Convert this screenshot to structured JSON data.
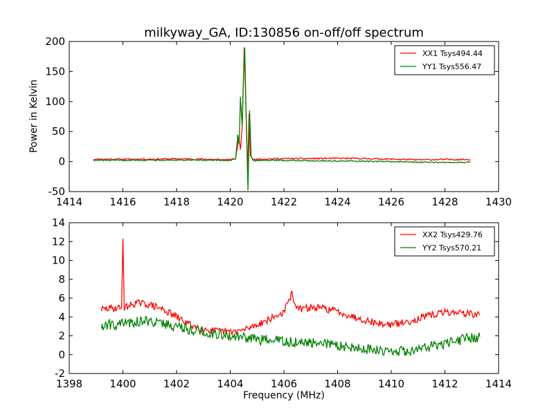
{
  "title": "milkyway_GA, ID:130856 on-off/off spectrum",
  "colors": {
    "xx": "#ff0000",
    "yy": "#008000"
  },
  "chart_data": [
    {
      "type": "line",
      "ylabel": "Power in Kelvin",
      "xlabel": "",
      "xlim": [
        1414,
        1430
      ],
      "ylim": [
        -50,
        200
      ],
      "xticks": [
        "1414",
        "1416",
        "1418",
        "1420",
        "1422",
        "1424",
        "1426",
        "1428",
        "1430"
      ],
      "yticks": [
        "-50",
        "0",
        "50",
        "100",
        "150",
        "200"
      ],
      "legend_position": "top-right",
      "series": [
        {
          "name": "XX1 Tsys494.44",
          "color": "#ff0000",
          "points": [
            [
              1414.9,
              4
            ],
            [
              1416,
              4
            ],
            [
              1417,
              4
            ],
            [
              1418,
              4.5
            ],
            [
              1419,
              4
            ],
            [
              1420,
              3
            ],
            [
              1420.2,
              5
            ],
            [
              1420.32,
              40
            ],
            [
              1420.38,
              20
            ],
            [
              1420.45,
              60
            ],
            [
              1420.52,
              190
            ],
            [
              1420.58,
              100
            ],
            [
              1420.65,
              -20
            ],
            [
              1420.7,
              80
            ],
            [
              1420.75,
              10
            ],
            [
              1420.85,
              3
            ],
            [
              1421,
              4
            ],
            [
              1422,
              5
            ],
            [
              1423,
              5
            ],
            [
              1424,
              5.5
            ],
            [
              1425,
              5
            ],
            [
              1426,
              4
            ],
            [
              1427,
              3
            ],
            [
              1428,
              3.5
            ],
            [
              1428.95,
              3.5
            ]
          ]
        },
        {
          "name": "YY1 Tsys556.47",
          "color": "#008000",
          "points": [
            [
              1414.9,
              2
            ],
            [
              1416,
              2
            ],
            [
              1417,
              2.5
            ],
            [
              1418,
              2.5
            ],
            [
              1419,
              2
            ],
            [
              1420,
              2
            ],
            [
              1420.2,
              4
            ],
            [
              1420.28,
              45
            ],
            [
              1420.33,
              30
            ],
            [
              1420.38,
              108
            ],
            [
              1420.44,
              60
            ],
            [
              1420.5,
              150
            ],
            [
              1420.54,
              190
            ],
            [
              1420.6,
              60
            ],
            [
              1420.66,
              -48
            ],
            [
              1420.72,
              85
            ],
            [
              1420.78,
              8
            ],
            [
              1420.88,
              1
            ],
            [
              1421,
              2
            ],
            [
              1422,
              2
            ],
            [
              1423,
              1.5
            ],
            [
              1424,
              1
            ],
            [
              1425,
              0.5
            ],
            [
              1426,
              0
            ],
            [
              1427,
              -1
            ],
            [
              1428,
              -1.5
            ],
            [
              1428.95,
              -1
            ]
          ]
        }
      ]
    },
    {
      "type": "line",
      "ylabel": "",
      "xlabel": "Frequency (MHz)",
      "xlim": [
        1398,
        1414
      ],
      "ylim": [
        -2,
        14
      ],
      "xticks": [
        "1398",
        "1400",
        "1402",
        "1404",
        "1406",
        "1408",
        "1410",
        "1412",
        "1414"
      ],
      "yticks": [
        "-2",
        "0",
        "2",
        "4",
        "6",
        "8",
        "10",
        "12",
        "14"
      ],
      "legend_position": "top-right",
      "series": [
        {
          "name": "XX2 Tsys429.76",
          "color": "#ff0000",
          "points": [
            [
              1399.2,
              4.8
            ],
            [
              1399.5,
              4.9
            ],
            [
              1399.95,
              5.0
            ],
            [
              1400.0,
              12.3
            ],
            [
              1400.05,
              5.0
            ],
            [
              1400.5,
              5.5
            ],
            [
              1401,
              5.3
            ],
            [
              1401.5,
              4.8
            ],
            [
              1402,
              4.0
            ],
            [
              1402.5,
              3.2
            ],
            [
              1403,
              2.7
            ],
            [
              1403.5,
              2.5
            ],
            [
              1404,
              2.4
            ],
            [
              1404.5,
              2.6
            ],
            [
              1405,
              3.2
            ],
            [
              1405.5,
              3.8
            ],
            [
              1406,
              4.5
            ],
            [
              1406.3,
              6.5
            ],
            [
              1406.5,
              4.8
            ],
            [
              1407,
              5.0
            ],
            [
              1407.5,
              4.9
            ],
            [
              1408,
              4.6
            ],
            [
              1408.5,
              4.1
            ],
            [
              1409,
              3.7
            ],
            [
              1409.5,
              3.3
            ],
            [
              1410,
              3.2
            ],
            [
              1410.5,
              3.4
            ],
            [
              1411,
              3.8
            ],
            [
              1411.5,
              4.2
            ],
            [
              1412,
              4.5
            ],
            [
              1412.5,
              4.5
            ],
            [
              1413,
              4.3
            ],
            [
              1413.3,
              4.2
            ]
          ]
        },
        {
          "name": "YY2 Tsys570.21",
          "color": "#008000",
          "points": [
            [
              1399.2,
              3.0
            ],
            [
              1399.5,
              3.2
            ],
            [
              1400,
              3.3
            ],
            [
              1400.5,
              3.5
            ],
            [
              1401,
              3.6
            ],
            [
              1401.5,
              3.3
            ],
            [
              1402,
              3.0
            ],
            [
              1402.5,
              2.7
            ],
            [
              1403,
              2.4
            ],
            [
              1403.5,
              2.2
            ],
            [
              1404,
              2.0
            ],
            [
              1404.5,
              1.8
            ],
            [
              1405,
              1.6
            ],
            [
              1405.5,
              1.5
            ],
            [
              1406,
              1.4
            ],
            [
              1406.5,
              1.3
            ],
            [
              1407,
              1.2
            ],
            [
              1407.5,
              1.1
            ],
            [
              1408,
              1.0
            ],
            [
              1408.5,
              0.8
            ],
            [
              1409,
              0.6
            ],
            [
              1409.5,
              0.5
            ],
            [
              1410,
              0.4
            ],
            [
              1410.5,
              0.4
            ],
            [
              1411,
              0.6
            ],
            [
              1411.5,
              0.9
            ],
            [
              1412,
              1.2
            ],
            [
              1412.5,
              1.5
            ],
            [
              1413,
              1.8
            ],
            [
              1413.3,
              1.9
            ]
          ]
        }
      ]
    }
  ]
}
